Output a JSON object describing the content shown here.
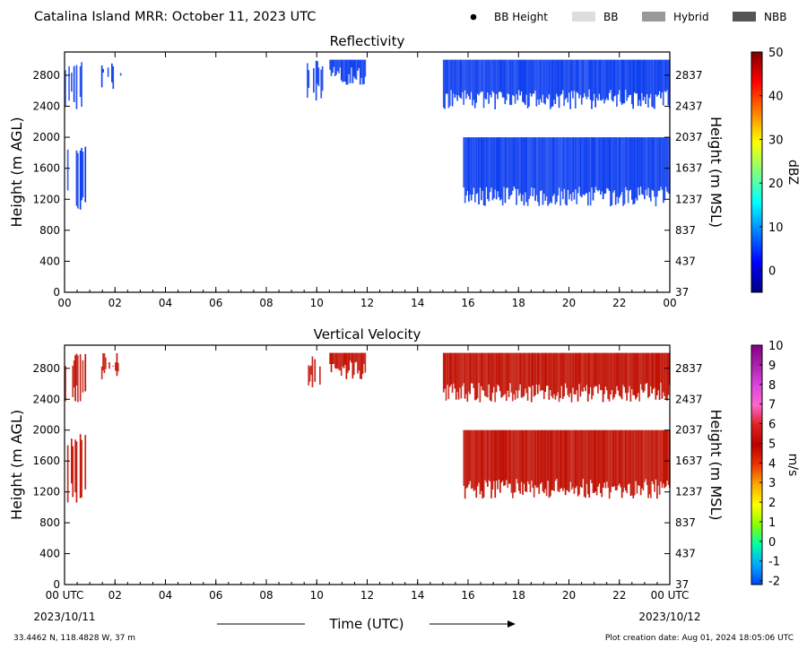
{
  "header": {
    "title": "Catalina Island MRR:  October 11, 2023 UTC",
    "legend": [
      {
        "label": "BB Height",
        "kind": "dot",
        "color": "#000000"
      },
      {
        "label": "BB",
        "kind": "box",
        "color": "#dddddd"
      },
      {
        "label": "Hybrid",
        "kind": "box",
        "color": "#999999"
      },
      {
        "label": "NBB",
        "kind": "box",
        "color": "#555555"
      }
    ]
  },
  "chart_data": [
    {
      "type": "heatmap",
      "title": "Reflectivity",
      "ylabel_left": "Height (m AGL)",
      "ylabel_right": "Height (m MSL)",
      "xlim": [
        0,
        24
      ],
      "ylim": [
        0,
        3100
      ],
      "x_ticks": [
        "00",
        "02",
        "04",
        "06",
        "08",
        "10",
        "12",
        "14",
        "16",
        "18",
        "20",
        "22",
        "00"
      ],
      "y_ticks_left": [
        "0",
        "400",
        "800",
        "1200",
        "1600",
        "2000",
        "2400",
        "2800"
      ],
      "y_ticks_right": [
        "37",
        "437",
        "837",
        "1237",
        "1637",
        "2037",
        "2437",
        "2837"
      ],
      "colorbar": {
        "label": "dBZ",
        "range": [
          -5,
          50
        ],
        "ticks": [
          "0",
          "10",
          "20",
          "30",
          "40",
          "50"
        ],
        "stops": [
          "#00007f",
          "#0000ff",
          "#007fff",
          "#00ffff",
          "#7fff7f",
          "#ffff00",
          "#ff7f00",
          "#ff0000",
          "#7f0000"
        ]
      },
      "cell_color": "#0a3cf0",
      "echo_regions": [
        {
          "t_start": 0.0,
          "t_end": 0.8,
          "h_bottom": 2450,
          "h_top": 3000,
          "note": "upper echo, early"
        },
        {
          "t_start": 0.0,
          "t_end": 0.8,
          "h_bottom": 1150,
          "h_top": 1950,
          "note": "lower echo, early"
        },
        {
          "t_start": 1.4,
          "t_end": 2.2,
          "h_bottom": 2700,
          "h_top": 3000,
          "note": "sparse upper echo"
        },
        {
          "t_start": 9.6,
          "t_end": 10.2,
          "h_bottom": 2550,
          "h_top": 3000,
          "note": "sparse upper echo"
        },
        {
          "t_start": 10.5,
          "t_end": 11.9,
          "h_bottom": 2750,
          "h_top": 3000,
          "note": "sparse upper echo"
        },
        {
          "t_start": 15.0,
          "t_end": 24.0,
          "h_bottom": 2450,
          "h_top": 3000,
          "note": "upper echo, late"
        },
        {
          "t_start": 15.8,
          "t_end": 24.0,
          "h_bottom": 1200,
          "h_top": 2000,
          "note": "lower echo, late"
        }
      ]
    },
    {
      "type": "heatmap",
      "title": "Vertical Velocity",
      "ylabel_left": "Height (m AGL)",
      "ylabel_right": "Height (m MSL)",
      "xlim": [
        0,
        24
      ],
      "ylim": [
        0,
        3100
      ],
      "x_ticks": [
        "00 UTC",
        "02",
        "04",
        "06",
        "08",
        "10",
        "12",
        "14",
        "16",
        "18",
        "20",
        "22",
        "00 UTC"
      ],
      "y_ticks_left": [
        "0",
        "400",
        "800",
        "1200",
        "1600",
        "2000",
        "2400",
        "2800"
      ],
      "y_ticks_right": [
        "37",
        "437",
        "837",
        "1237",
        "1637",
        "2037",
        "2437",
        "2837"
      ],
      "colorbar": {
        "label": "m/s",
        "range": [
          -2.2,
          10
        ],
        "ticks": [
          "-2",
          "-1",
          "0",
          "1",
          "2",
          "3",
          "4",
          "5",
          "6",
          "7",
          "8",
          "9",
          "10"
        ],
        "stops": [
          "#0044ff",
          "#00aaff",
          "#00ffaa",
          "#88ff00",
          "#ffff00",
          "#ffaa00",
          "#ee3300",
          "#bb0000",
          "#dd2222",
          "#ff66cc",
          "#dd44dd",
          "#aa22aa",
          "#880088"
        ]
      },
      "cell_color": "#c00e00",
      "echo_regions": [
        {
          "t_start": 0.0,
          "t_end": 0.8,
          "h_bottom": 2450,
          "h_top": 3000,
          "note": "upper echo, early"
        },
        {
          "t_start": 0.0,
          "t_end": 0.8,
          "h_bottom": 1150,
          "h_top": 1950,
          "note": "lower echo, early"
        },
        {
          "t_start": 1.4,
          "t_end": 2.2,
          "h_bottom": 2700,
          "h_top": 3000,
          "note": "sparse upper echo"
        },
        {
          "t_start": 9.6,
          "t_end": 10.2,
          "h_bottom": 2550,
          "h_top": 3000,
          "note": "sparse upper echo"
        },
        {
          "t_start": 10.5,
          "t_end": 11.9,
          "h_bottom": 2750,
          "h_top": 3000,
          "note": "sparse upper echo"
        },
        {
          "t_start": 15.0,
          "t_end": 24.0,
          "h_bottom": 2450,
          "h_top": 3000,
          "note": "upper echo, late"
        },
        {
          "t_start": 15.8,
          "t_end": 24.0,
          "h_bottom": 1200,
          "h_top": 2000,
          "note": "lower echo, late"
        }
      ]
    }
  ],
  "footer": {
    "date_left": "2023/10/11",
    "date_right": "2023/10/12",
    "xlabel": "Time (UTC)",
    "location": "33.4462 N, 118.4828 W, 37 m",
    "creation": "Plot creation date: Aug 01, 2024 18:05:06 UTC"
  }
}
